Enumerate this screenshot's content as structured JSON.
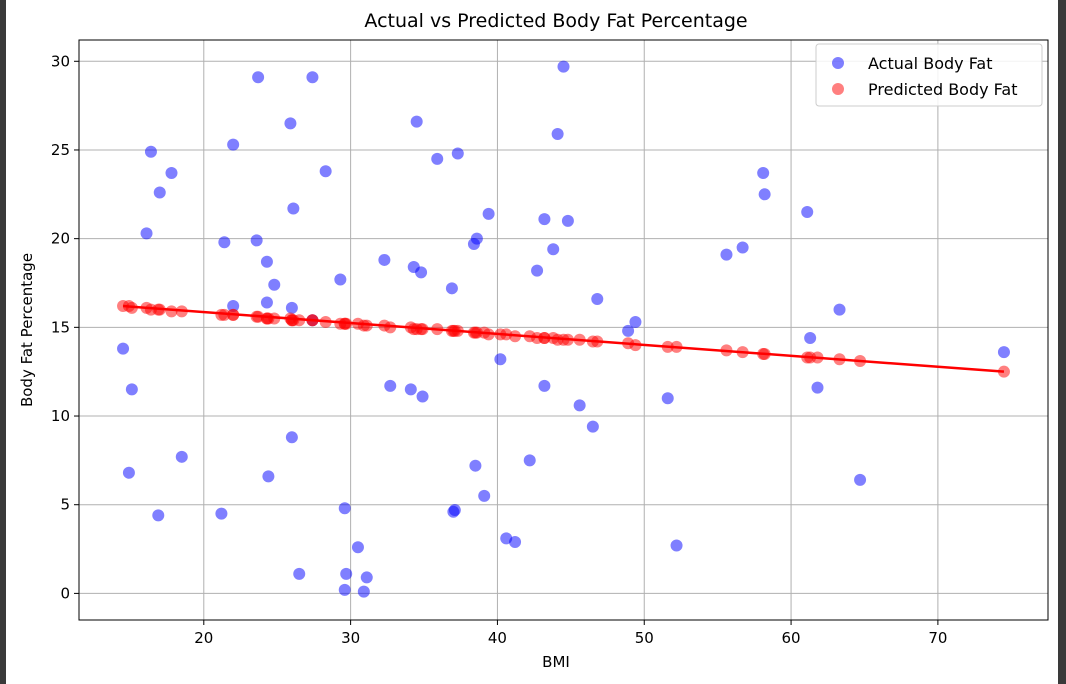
{
  "chart_data": {
    "type": "scatter",
    "title": "Actual vs Predicted Body Fat Percentage",
    "xlabel": "BMI",
    "ylabel": "Body Fat Percentage",
    "xlim": [
      11.5,
      77.5
    ],
    "ylim": [
      -1.5,
      31.2
    ],
    "xticks": [
      20,
      30,
      40,
      50,
      60,
      70
    ],
    "yticks": [
      0,
      5,
      10,
      15,
      20,
      25,
      30
    ],
    "grid": true,
    "legend": "top-right",
    "regression_line": {
      "x": [
        14.5,
        74.5
      ],
      "y": [
        16.2,
        12.5
      ],
      "color": "#ff0000"
    },
    "series": [
      {
        "name": "Actual Body Fat",
        "color": "#0000ff",
        "points": [
          [
            14.5,
            13.8
          ],
          [
            14.9,
            6.8
          ],
          [
            15.1,
            11.5
          ],
          [
            16.1,
            20.3
          ],
          [
            16.4,
            24.9
          ],
          [
            16.9,
            4.4
          ],
          [
            17.0,
            22.6
          ],
          [
            17.8,
            23.7
          ],
          [
            18.5,
            7.7
          ],
          [
            21.2,
            4.5
          ],
          [
            21.4,
            19.8
          ],
          [
            22.0,
            16.2
          ],
          [
            22.0,
            25.3
          ],
          [
            23.6,
            19.9
          ],
          [
            23.7,
            29.1
          ],
          [
            24.3,
            18.7
          ],
          [
            24.3,
            16.4
          ],
          [
            24.4,
            6.6
          ],
          [
            24.8,
            17.4
          ],
          [
            25.9,
            26.5
          ],
          [
            26.0,
            16.1
          ],
          [
            26.0,
            8.8
          ],
          [
            26.1,
            21.7
          ],
          [
            26.5,
            1.1
          ],
          [
            27.4,
            29.1
          ],
          [
            27.4,
            15.4
          ],
          [
            28.3,
            23.8
          ],
          [
            29.3,
            17.7
          ],
          [
            29.6,
            4.8
          ],
          [
            29.7,
            1.1
          ],
          [
            29.6,
            0.2
          ],
          [
            30.5,
            2.6
          ],
          [
            30.9,
            0.1
          ],
          [
            31.1,
            0.9
          ],
          [
            32.3,
            18.8
          ],
          [
            32.7,
            11.7
          ],
          [
            34.1,
            11.5
          ],
          [
            34.3,
            18.4
          ],
          [
            34.5,
            26.6
          ],
          [
            34.8,
            18.1
          ],
          [
            34.9,
            11.1
          ],
          [
            35.9,
            24.5
          ],
          [
            36.9,
            17.2
          ],
          [
            37.0,
            4.6
          ],
          [
            37.1,
            4.7
          ],
          [
            37.3,
            24.8
          ],
          [
            38.4,
            19.7
          ],
          [
            38.5,
            7.2
          ],
          [
            38.6,
            20.0
          ],
          [
            39.1,
            5.5
          ],
          [
            39.4,
            21.4
          ],
          [
            40.2,
            13.2
          ],
          [
            40.6,
            3.1
          ],
          [
            41.2,
            2.9
          ],
          [
            42.2,
            7.5
          ],
          [
            42.7,
            18.2
          ],
          [
            43.2,
            11.7
          ],
          [
            43.2,
            21.1
          ],
          [
            43.8,
            19.4
          ],
          [
            44.1,
            25.9
          ],
          [
            44.5,
            29.7
          ],
          [
            44.8,
            21.0
          ],
          [
            45.6,
            10.6
          ],
          [
            46.5,
            9.4
          ],
          [
            46.8,
            16.6
          ],
          [
            48.9,
            14.8
          ],
          [
            49.4,
            15.3
          ],
          [
            51.6,
            11.0
          ],
          [
            52.2,
            2.7
          ],
          [
            55.6,
            19.1
          ],
          [
            56.7,
            19.5
          ],
          [
            58.1,
            23.7
          ],
          [
            58.2,
            22.5
          ],
          [
            61.1,
            21.5
          ],
          [
            61.3,
            14.4
          ],
          [
            61.8,
            11.6
          ],
          [
            63.3,
            16.0
          ],
          [
            64.7,
            6.4
          ],
          [
            74.5,
            13.6
          ]
        ]
      },
      {
        "name": "Predicted Body Fat",
        "color": "#ff0000",
        "points": [
          [
            14.5,
            16.2
          ],
          [
            14.9,
            16.2
          ],
          [
            15.1,
            16.1
          ],
          [
            16.1,
            16.1
          ],
          [
            16.4,
            16.0
          ],
          [
            16.9,
            16.0
          ],
          [
            17.0,
            16.0
          ],
          [
            17.8,
            15.9
          ],
          [
            18.5,
            15.9
          ],
          [
            21.2,
            15.7
          ],
          [
            21.4,
            15.7
          ],
          [
            22.0,
            15.7
          ],
          [
            22.0,
            15.7
          ],
          [
            23.6,
            15.6
          ],
          [
            23.7,
            15.6
          ],
          [
            24.3,
            15.5
          ],
          [
            24.3,
            15.5
          ],
          [
            24.4,
            15.5
          ],
          [
            24.8,
            15.5
          ],
          [
            25.9,
            15.5
          ],
          [
            26.0,
            15.4
          ],
          [
            26.0,
            15.4
          ],
          [
            26.1,
            15.4
          ],
          [
            26.5,
            15.4
          ],
          [
            27.4,
            15.4
          ],
          [
            27.4,
            15.4
          ],
          [
            28.3,
            15.3
          ],
          [
            29.3,
            15.2
          ],
          [
            29.6,
            15.2
          ],
          [
            29.7,
            15.2
          ],
          [
            29.6,
            15.2
          ],
          [
            30.5,
            15.2
          ],
          [
            30.9,
            15.1
          ],
          [
            31.1,
            15.1
          ],
          [
            32.3,
            15.1
          ],
          [
            32.7,
            15.0
          ],
          [
            34.1,
            15.0
          ],
          [
            34.3,
            14.9
          ],
          [
            34.5,
            14.9
          ],
          [
            34.8,
            14.9
          ],
          [
            34.9,
            14.9
          ],
          [
            35.9,
            14.9
          ],
          [
            36.9,
            14.8
          ],
          [
            37.0,
            14.8
          ],
          [
            37.1,
            14.8
          ],
          [
            37.3,
            14.8
          ],
          [
            38.4,
            14.7
          ],
          [
            38.5,
            14.7
          ],
          [
            38.6,
            14.7
          ],
          [
            39.1,
            14.7
          ],
          [
            39.4,
            14.6
          ],
          [
            40.2,
            14.6
          ],
          [
            40.6,
            14.6
          ],
          [
            41.2,
            14.5
          ],
          [
            42.2,
            14.5
          ],
          [
            42.7,
            14.4
          ],
          [
            43.2,
            14.4
          ],
          [
            43.2,
            14.4
          ],
          [
            43.8,
            14.4
          ],
          [
            44.1,
            14.3
          ],
          [
            44.5,
            14.3
          ],
          [
            44.8,
            14.3
          ],
          [
            45.6,
            14.3
          ],
          [
            46.5,
            14.2
          ],
          [
            46.8,
            14.2
          ],
          [
            48.9,
            14.1
          ],
          [
            49.4,
            14.0
          ],
          [
            51.6,
            13.9
          ],
          [
            52.2,
            13.9
          ],
          [
            55.6,
            13.7
          ],
          [
            56.7,
            13.6
          ],
          [
            58.1,
            13.5
          ],
          [
            58.2,
            13.5
          ],
          [
            61.1,
            13.3
          ],
          [
            61.3,
            13.3
          ],
          [
            61.8,
            13.3
          ],
          [
            63.3,
            13.2
          ],
          [
            64.7,
            13.1
          ],
          [
            74.5,
            12.5
          ]
        ]
      }
    ]
  }
}
